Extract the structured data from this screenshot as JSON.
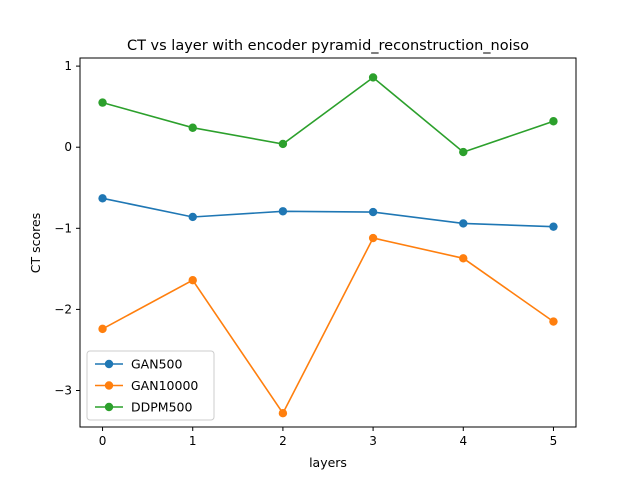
{
  "chart_data": {
    "type": "line",
    "title": "CT vs layer with encoder pyramid_reconstruction_noiso",
    "xlabel": "layers",
    "ylabel": "CT scores",
    "x": [
      0,
      1,
      2,
      3,
      4,
      5
    ],
    "xticks": [
      "0",
      "1",
      "2",
      "3",
      "4",
      "5"
    ],
    "yticks": [
      1,
      0,
      -1,
      -2,
      -3
    ],
    "ytick_labels": [
      "1",
      "0",
      "−1",
      "−2",
      "−3"
    ],
    "xlim": [
      -0.25,
      5.25
    ],
    "ylim": [
      -3.45,
      1.1
    ],
    "grid": false,
    "legend_position": "lower-left",
    "series": [
      {
        "name": "GAN500",
        "color": "#1f77b4",
        "values": [
          -0.63,
          -0.86,
          -0.79,
          -0.8,
          -0.94,
          -0.98
        ]
      },
      {
        "name": "GAN10000",
        "color": "#ff7f0e",
        "values": [
          -2.24,
          -1.64,
          -3.28,
          -1.12,
          -1.37,
          -2.15
        ]
      },
      {
        "name": "DDPM500",
        "color": "#2ca02c",
        "values": [
          0.55,
          0.24,
          0.04,
          0.86,
          -0.06,
          0.32
        ]
      }
    ]
  }
}
